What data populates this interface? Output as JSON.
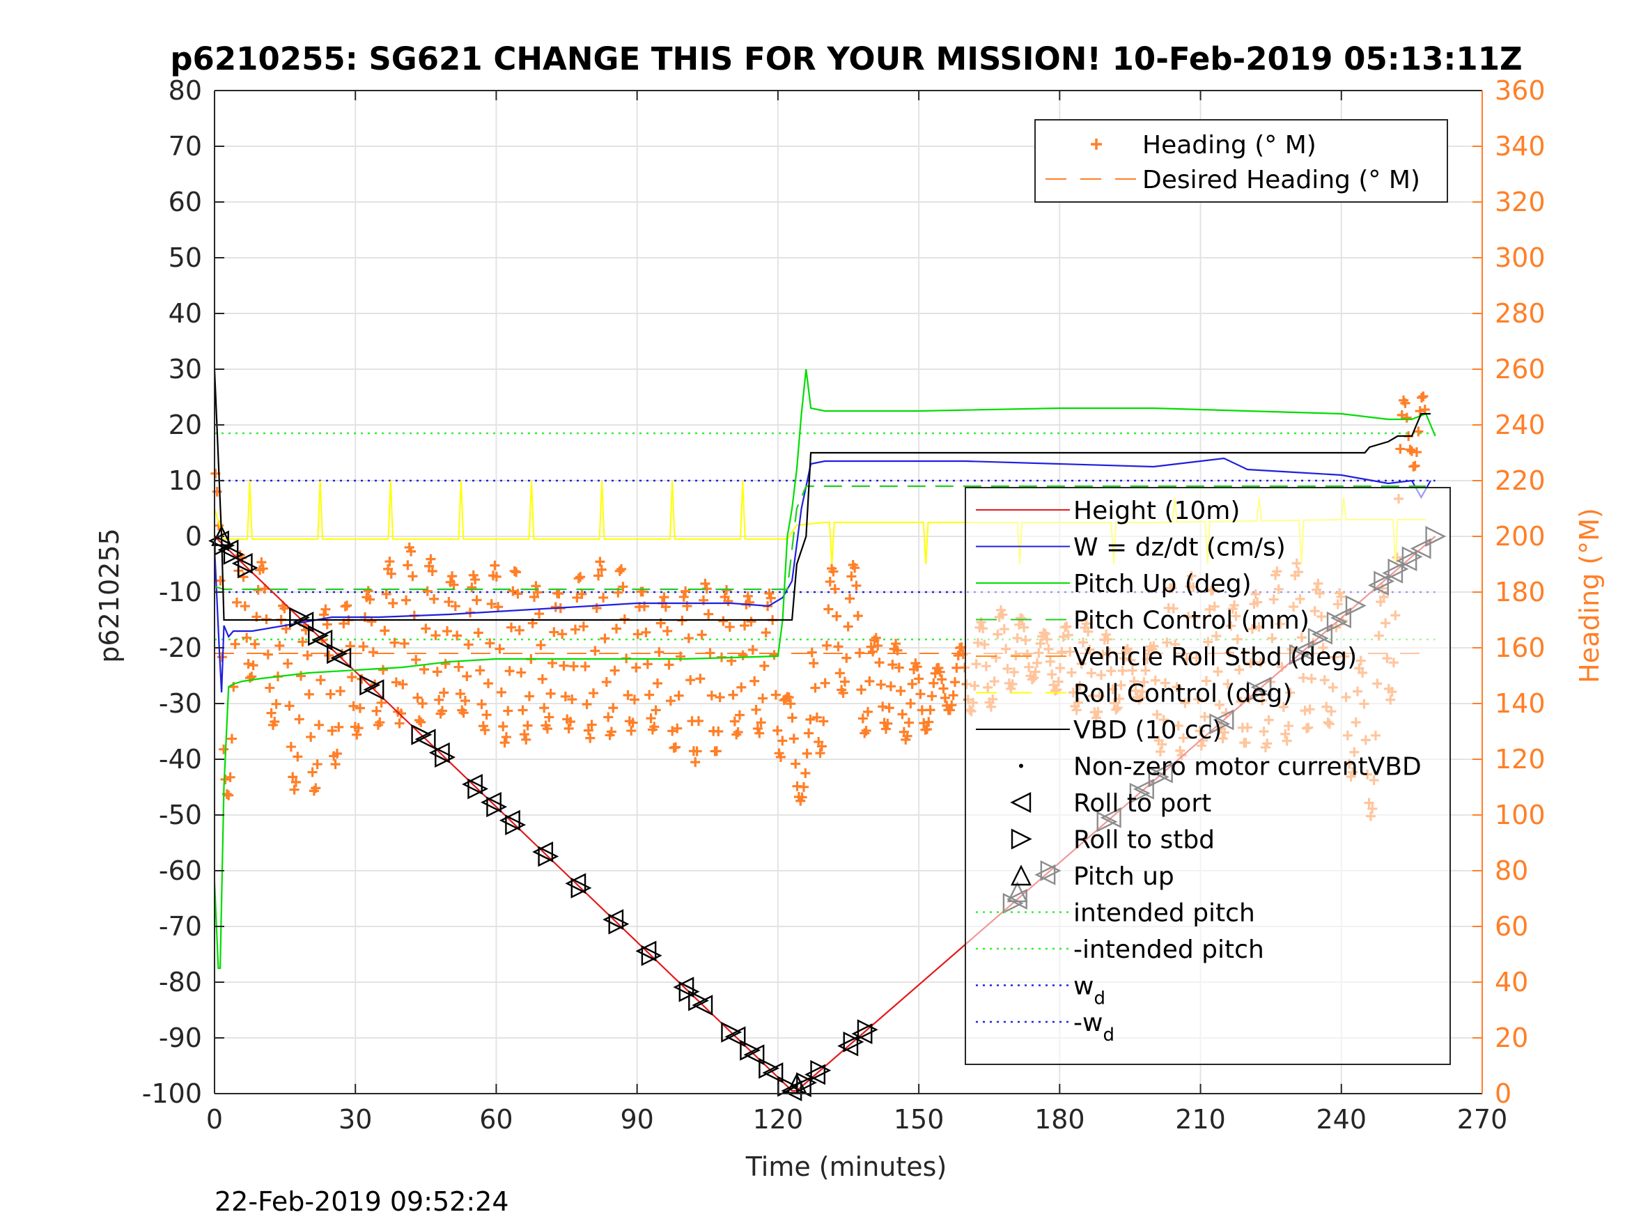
{
  "chart_data": {
    "type": "line",
    "title": "p6210255: SG621 CHANGE THIS FOR YOUR MISSION! 10-Feb-2019 05:13:11Z",
    "xlabel": "Time (minutes)",
    "ylabel_left": "p6210255",
    "ylabel_right": "Heading (°M)",
    "footer_date": "22-Feb-2019 09:52:24",
    "xlim": [
      0,
      270
    ],
    "ylim_left": [
      -100,
      80
    ],
    "ylim_right": [
      0,
      360
    ],
    "x_ticks": [
      "0",
      "30",
      "60",
      "90",
      "120",
      "150",
      "180",
      "210",
      "240",
      "270"
    ],
    "y_ticks_left": [
      "80",
      "70",
      "60",
      "50",
      "40",
      "30",
      "20",
      "10",
      "0",
      "-10",
      "-20",
      "-30",
      "-40",
      "-50",
      "-60",
      "-70",
      "-80",
      "-90",
      "-100"
    ],
    "y_ticks_right": [
      "360",
      "340",
      "320",
      "300",
      "280",
      "260",
      "240",
      "220",
      "200",
      "180",
      "160",
      "140",
      "120",
      "100",
      "80",
      "60",
      "40",
      "20",
      "0"
    ],
    "grid": true,
    "colors": {
      "height": "#e31a1c",
      "w": "#1f1fe0",
      "pitch": "#00dd00",
      "pitch_control": "#22cc22",
      "roll": "#ff8c1a",
      "roll_control": "#ffff00",
      "vbd": "#000000",
      "heading": "#ff7f27",
      "intended_pitch": "#33ee33",
      "wd": "#2222dd"
    },
    "legend_heading": {
      "placement": "top-right",
      "entries": [
        {
          "symbol": "plus",
          "label": "Heading (° M)"
        },
        {
          "symbol": "dash",
          "label": "Desired Heading (° M)"
        }
      ]
    },
    "legend_main": {
      "placement": "right",
      "entries": [
        {
          "label": "Height (10m)",
          "symbol": "line"
        },
        {
          "label": "W = dz/dt (cm/s)",
          "symbol": "line"
        },
        {
          "label": "Pitch Up (deg)",
          "symbol": "line"
        },
        {
          "label": "Pitch Control (mm)",
          "symbol": "dash"
        },
        {
          "label": "Vehicle Roll Stbd (deg)",
          "symbol": "dash"
        },
        {
          "label": "Roll Control (deg)",
          "symbol": "dash"
        },
        {
          "label": "VBD (10 cc)",
          "symbol": "line"
        },
        {
          "label": "Non-zero motor currentVBD",
          "symbol": "dot"
        },
        {
          "label": "Roll to port",
          "symbol": "tri-left"
        },
        {
          "label": "Roll to stbd",
          "symbol": "tri-right"
        },
        {
          "label": "Pitch up",
          "symbol": "tri-up"
        },
        {
          "label": "intended pitch",
          "symbol": "dot-line"
        },
        {
          "label": "-intended pitch",
          "symbol": "dot-line"
        },
        {
          "label": "w",
          "sub": "d",
          "symbol": "dot-line"
        },
        {
          "label": "-w",
          "sub": "d",
          "symbol": "dot-line"
        }
      ]
    },
    "series": [
      {
        "name": "Height (10m)",
        "axis": "left",
        "x": [
          0,
          123,
          124,
          260
        ],
        "y": [
          0,
          -99.5,
          -99.5,
          0
        ]
      },
      {
        "name": "W = dz/dt (cm/s)",
        "axis": "left",
        "x": [
          0,
          1,
          1.5,
          2,
          3,
          4,
          8,
          15,
          25,
          35,
          50,
          70,
          90,
          110,
          118,
          121,
          123,
          125,
          127,
          130,
          140,
          160,
          180,
          200,
          210,
          215,
          220,
          230,
          240,
          250,
          255,
          257,
          259
        ],
        "y": [
          -2,
          -20,
          -28,
          -16,
          -18,
          -17,
          -17,
          -16,
          -14.5,
          -14.5,
          -14,
          -13,
          -12,
          -12,
          -12.5,
          -11,
          -8,
          5,
          13,
          13.5,
          13.5,
          13.5,
          13,
          12.5,
          13.5,
          14,
          12,
          11.5,
          11,
          9.5,
          10,
          7,
          10
        ]
      },
      {
        "name": "Pitch Up (deg)",
        "axis": "left",
        "x": [
          0,
          0.8,
          1.2,
          2,
          3,
          4,
          6,
          10,
          20,
          30,
          40,
          50,
          60,
          70,
          80,
          100,
          120,
          121,
          122,
          123,
          124,
          125,
          126,
          127,
          130,
          150,
          180,
          200,
          220,
          240,
          250,
          255,
          258,
          260
        ],
        "y": [
          -62,
          -77.5,
          -77.5,
          -45,
          -27,
          -26.5,
          -26,
          -25.5,
          -24.5,
          -24,
          -23.5,
          -22.5,
          -22,
          -22,
          -22,
          -22,
          -21.5,
          -15,
          0,
          5,
          12,
          22,
          30,
          23,
          22.5,
          22.5,
          23,
          23,
          22.5,
          22,
          21,
          21,
          22,
          18
        ]
      },
      {
        "name": "Pitch Control (mm)",
        "axis": "left",
        "dash": true,
        "x": [
          0,
          2,
          122,
          124,
          126,
          258
        ],
        "y": [
          -9,
          -9.5,
          -9.5,
          5,
          9,
          9
        ]
      },
      {
        "name": "VBD (10 cc)",
        "axis": "left",
        "x": [
          0,
          0.5,
          1.5,
          2,
          123,
          124,
          126,
          127,
          180,
          210,
          230,
          245,
          246,
          250,
          252,
          255,
          256,
          257,
          259
        ],
        "y": [
          30,
          20,
          0,
          -15,
          -15,
          -5,
          0,
          15,
          15,
          15,
          15,
          15,
          16,
          17,
          18,
          18,
          20,
          22,
          22
        ]
      },
      {
        "name": "Roll Control (deg)",
        "axis": "left",
        "x": [
          0,
          2,
          5,
          30,
          60,
          90,
          122,
          124,
          130,
          160,
          200,
          240,
          258
        ],
        "y": [
          5,
          -0.5,
          -0.5,
          -0.5,
          -0.5,
          -0.5,
          -0.5,
          2,
          2.5,
          2.5,
          2.5,
          3,
          3
        ]
      }
    ],
    "reference_lines": [
      {
        "name": "intended pitch",
        "y": 18.5
      },
      {
        "name": "-intended pitch",
        "y": -18.5
      },
      {
        "name": "w_d",
        "y": 10
      },
      {
        "name": "-w_d",
        "y": -10
      }
    ],
    "heading": {
      "name": "Heading (° M)",
      "axis": "right",
      "desired": 158,
      "anchors_x": [
        0,
        2,
        4,
        8,
        18,
        28,
        40,
        55,
        70,
        85,
        100,
        115,
        121,
        124,
        126,
        130,
        135,
        140,
        150,
        160,
        170,
        180,
        190,
        200,
        210,
        220,
        230,
        240,
        245,
        250,
        255,
        258
      ],
      "anchors_y": [
        225,
        110,
        160,
        175,
        135,
        150,
        165,
        160,
        155,
        160,
        150,
        155,
        150,
        115,
        115,
        160,
        170,
        150,
        140,
        150,
        160,
        155,
        150,
        150,
        155,
        150,
        160,
        155,
        120,
        160,
        255,
        220
      ],
      "osc_amplitude": 28,
      "osc_period": 4.5
    },
    "markers": {
      "roll_to_port": [
        1,
        3,
        6,
        19,
        23,
        27,
        34,
        45,
        48,
        55,
        59,
        63,
        70,
        77,
        85,
        92,
        100,
        104,
        111,
        115,
        119,
        123,
        125,
        128,
        135,
        138,
        171,
        177,
        191,
        198,
        202,
        215,
        223,
        232,
        236,
        240,
        248,
        251,
        254,
        257
      ],
      "roll_to_stbd": [
        2,
        4,
        7,
        18,
        22,
        26,
        33,
        44,
        49,
        56,
        60,
        64,
        71,
        78,
        86,
        93,
        101,
        103,
        110,
        114,
        118,
        122,
        126,
        129,
        136,
        139,
        170,
        178,
        190,
        197,
        201,
        214,
        222,
        231,
        235,
        239,
        243,
        249,
        252,
        255,
        260
      ],
      "pitch_up": [
        1.5,
        124,
        171
      ]
    }
  }
}
